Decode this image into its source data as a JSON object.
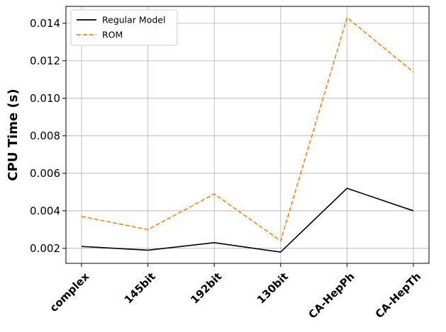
{
  "chart_data": {
    "type": "line",
    "categories": [
      "complex",
      "145bit",
      "192bit",
      "130bit",
      "CA-HepPh",
      "CA-HepTh"
    ],
    "series": [
      {
        "name": "Regular Model",
        "values": [
          0.0021,
          0.0019,
          0.0023,
          0.0018,
          0.0052,
          0.004
        ],
        "color": "#000000",
        "style": "solid"
      },
      {
        "name": "ROM",
        "values": [
          0.0037,
          0.003,
          0.0049,
          0.0024,
          0.0143,
          0.0114
        ],
        "color": "#ff7f0e",
        "style": "dashed"
      }
    ],
    "title": "",
    "xlabel": "",
    "ylabel": "CPU Time (s)",
    "ylim": [
      0.0012,
      0.0149
    ],
    "yticks": [
      "0.002",
      "0.004",
      "0.006",
      "0.008",
      "0.010",
      "0.012",
      "0.014"
    ],
    "grid": true,
    "legend_position": "upper-left"
  }
}
